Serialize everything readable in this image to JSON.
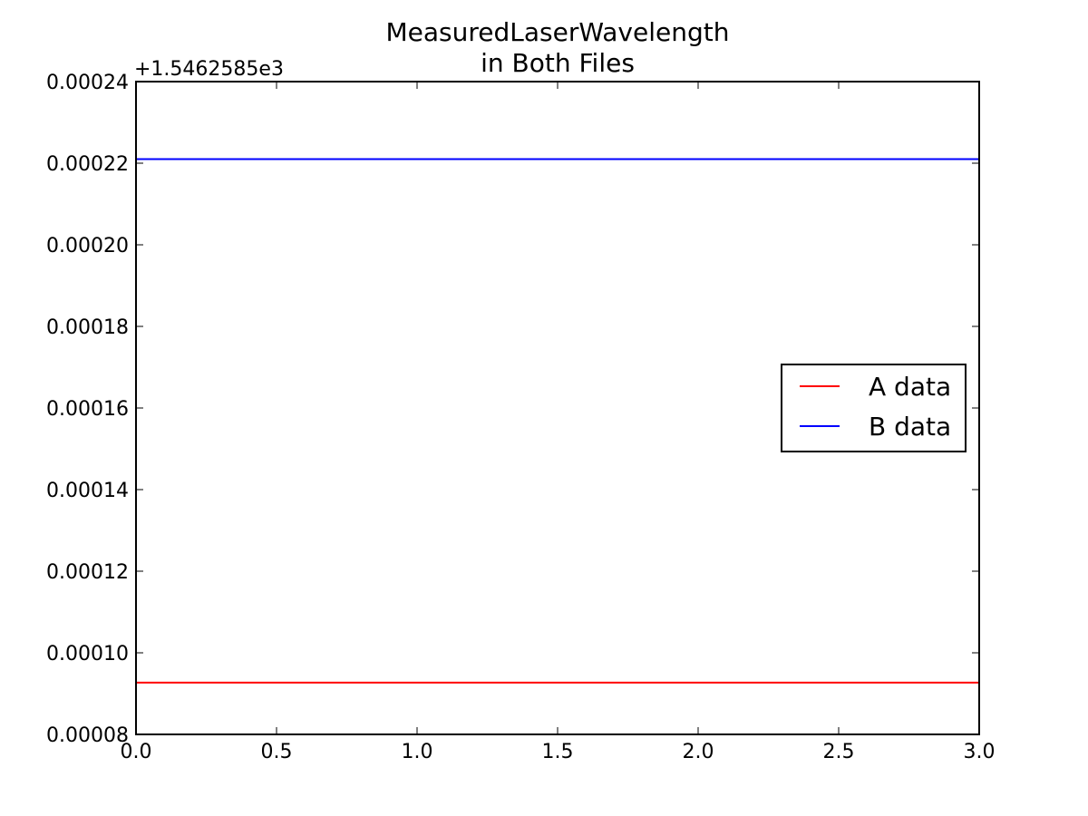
{
  "chart_data": {
    "type": "line",
    "title": [
      "MeasuredLaserWavelength",
      "in Both Files"
    ],
    "y_offset_label": "+1.5462585e3",
    "x": [
      0,
      1,
      2,
      3
    ],
    "series": [
      {
        "name": "A data",
        "color": "#ff0000",
        "values": [
          9.27e-05,
          9.27e-05,
          9.27e-05,
          9.27e-05
        ]
      },
      {
        "name": "B data",
        "color": "#0000ff",
        "values": [
          0.000221,
          0.000221,
          0.000221,
          0.000221
        ]
      }
    ],
    "xlim": [
      0,
      3
    ],
    "xticks": [
      {
        "value": 0,
        "label": "0.0"
      },
      0.5,
      {
        "value": 1,
        "label": "1.0"
      },
      1.5,
      {
        "value": 2,
        "label": "2.0"
      },
      2.5,
      {
        "value": 3,
        "label": "3.0"
      }
    ],
    "ylim": [
      8e-05,
      0.00024
    ],
    "yticks": [
      8e-05,
      {
        "value": 0.0001,
        "label": "0.00010"
      },
      0.00012,
      0.00014,
      0.00016,
      0.00018,
      {
        "value": 0.0002,
        "label": "0.00020"
      },
      0.00022,
      0.00024
    ],
    "grid": false,
    "legend": "center right"
  }
}
